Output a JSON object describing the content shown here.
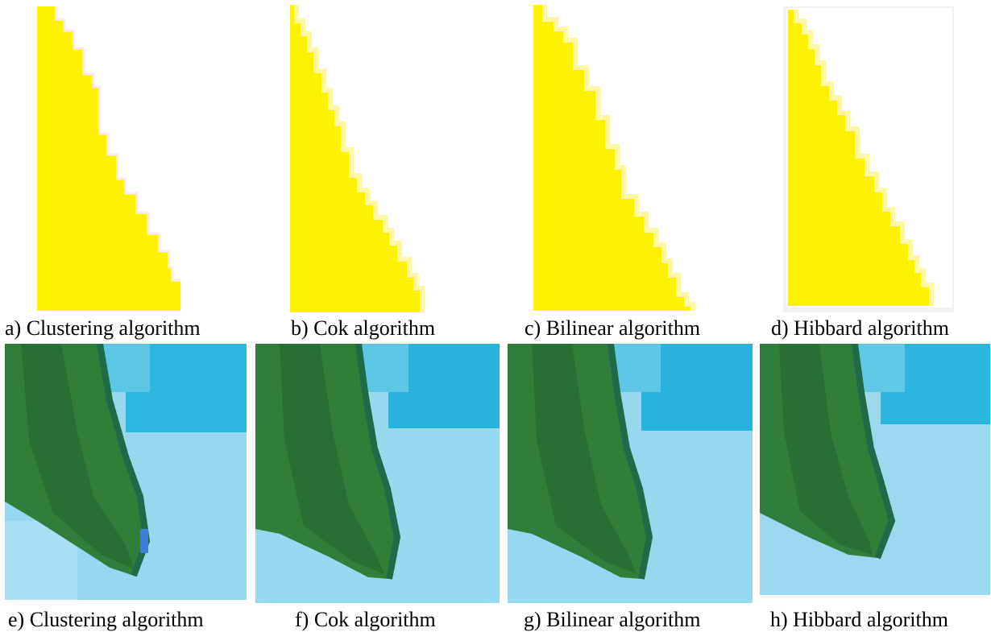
{
  "figure": {
    "colors": {
      "yellow": "#fff200",
      "fringe": "#fdf4ff",
      "water": "#96d8ef",
      "leaf": "#2f7f3a",
      "leaf_dark": "#1f6a4a",
      "sky_cyan": "#1fb3df"
    },
    "top_row": [
      {
        "caption": "a) Clustering algorithm",
        "icon": "yellow-staircase-triangle"
      },
      {
        "caption": "b) Cok algorithm",
        "icon": "yellow-staircase-triangle"
      },
      {
        "caption": "c) Bilinear algorithm",
        "icon": "yellow-staircase-triangle"
      },
      {
        "caption": "d) Hibbard algorithm",
        "icon": "yellow-staircase-triangle"
      }
    ],
    "bottom_row": [
      {
        "caption": "e) Clustering algorithm",
        "icon": "green-leaf-on-water"
      },
      {
        "caption": "f) Cok algorithm",
        "icon": "green-leaf-on-water"
      },
      {
        "caption": "g) Bilinear algorithm",
        "icon": "green-leaf-on-water"
      },
      {
        "caption": "h) Hibbard algorithm",
        "icon": "green-leaf-on-water"
      }
    ]
  }
}
